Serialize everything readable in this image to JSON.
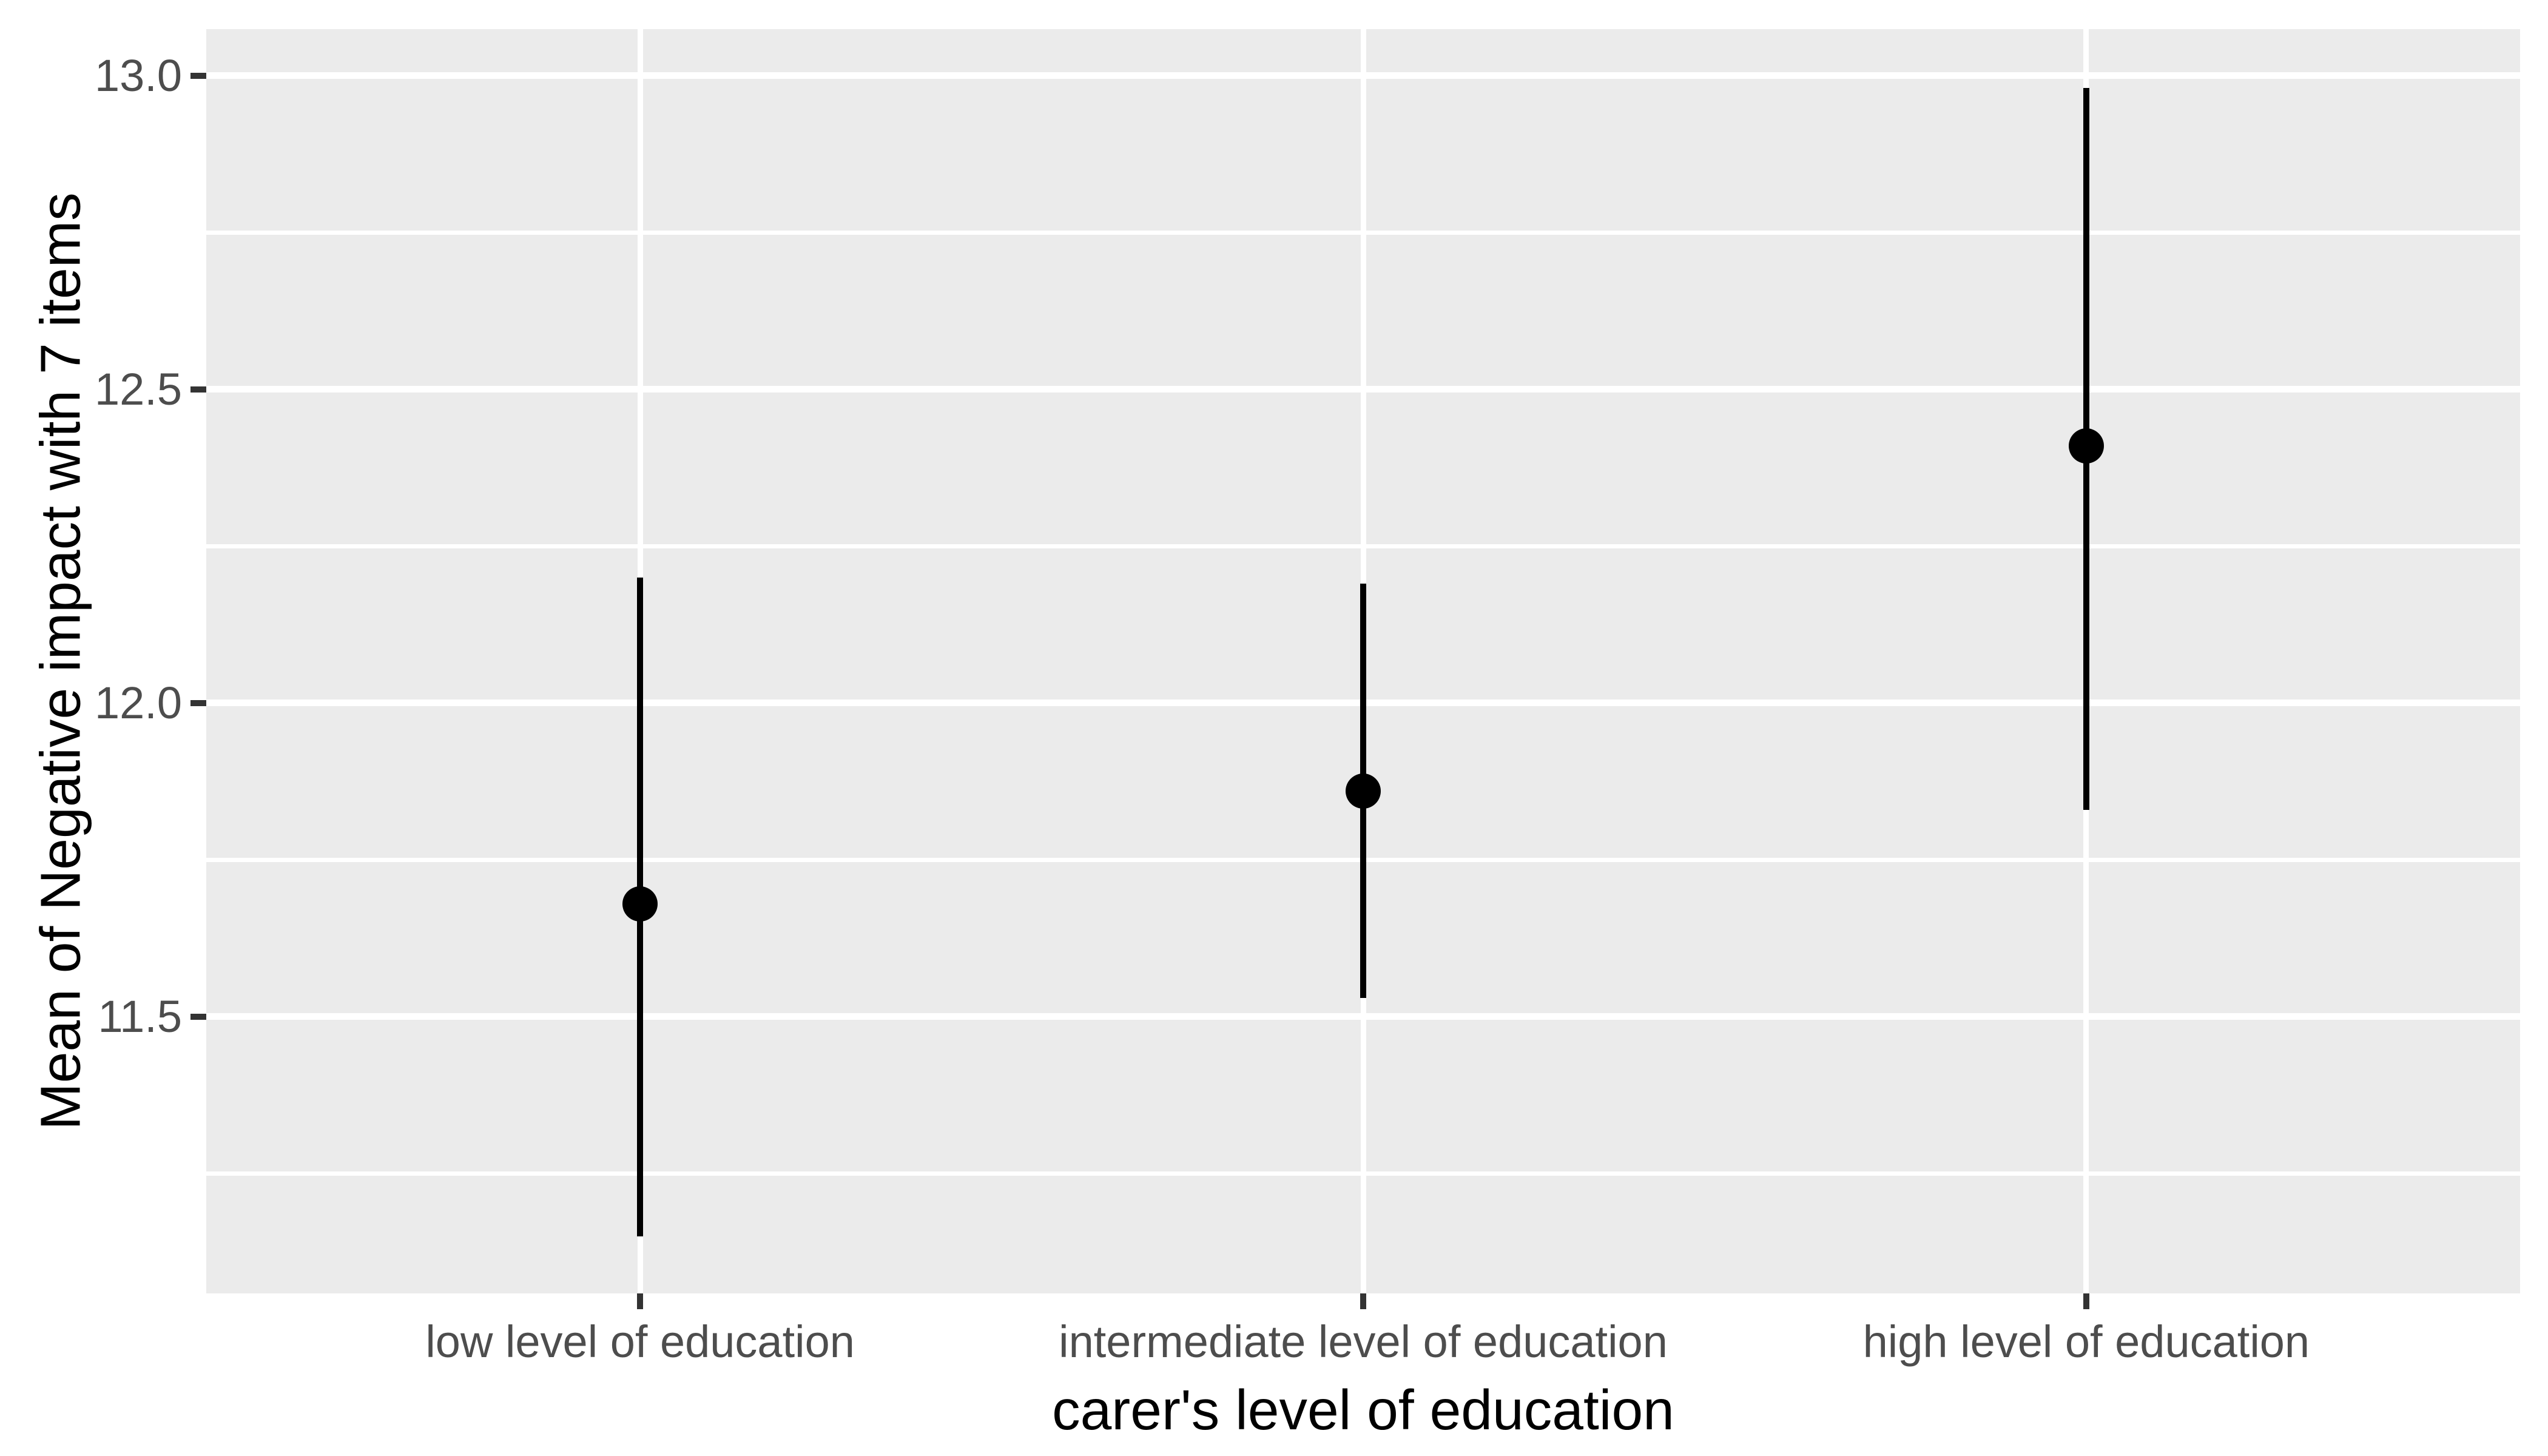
{
  "figure": {
    "background_color": "#FFFFFF"
  },
  "chart_data": {
    "type": "pointrange",
    "title": "",
    "xlabel": "carer's level of education",
    "ylabel": "Mean of Negative impact with 7 items",
    "categories": [
      "low level of education",
      "intermediate level of education",
      "high level of education"
    ],
    "series": [
      {
        "name": "mean of negative impact",
        "means": [
          11.68,
          11.86,
          12.41
        ],
        "ci_lower": [
          11.15,
          11.53,
          11.83
        ],
        "ci_upper": [
          12.2,
          12.19,
          12.98
        ]
      }
    ],
    "ylim": [
      11.059,
      13.074
    ],
    "y_major_ticks": [
      11.5,
      12.0,
      12.5,
      13.0
    ],
    "y_major_tick_labels": [
      "11.5",
      "12.0",
      "12.5",
      "13.0"
    ],
    "y_minor_ticks": [
      11.25,
      11.75,
      12.25,
      12.75
    ],
    "x_tick_labels": [
      "low level of education",
      "intermediate level of education",
      "high level of education"
    ],
    "legend_position": "none",
    "grid": "horizontal major+minor, vertical major at categories",
    "colors": {
      "panel_background": "#EBEBEB",
      "gridline": "#FFFFFF",
      "point_and_range": "#000000",
      "tick_mark": "#333333",
      "tick_label": "#4D4D4D",
      "axis_title": "#000000"
    }
  }
}
